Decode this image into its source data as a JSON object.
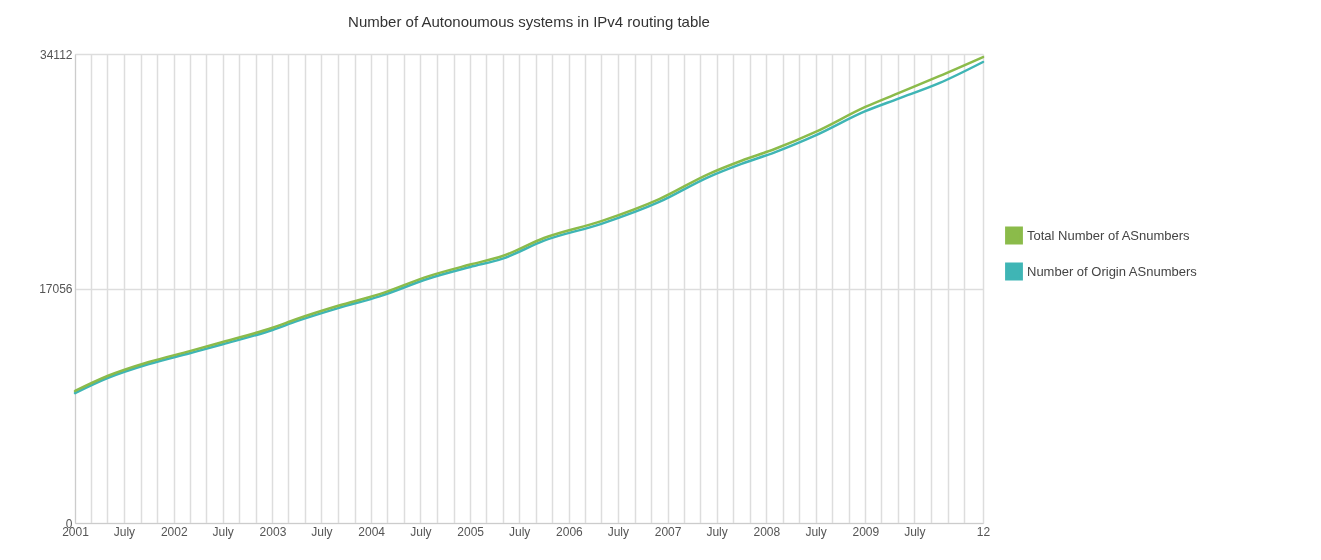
{
  "chart_data": {
    "type": "line",
    "title": "Number of Autonoumous systems in IPv4 routing table",
    "x": [
      "2001-01-01",
      "2001-05-01",
      "2001-10-01",
      "2002-03-01",
      "2002-07-01",
      "2003-01-01",
      "2003-04-01",
      "2003-09-01",
      "2004-02-01",
      "2004-08-01",
      "2005-01-01",
      "2005-05-01",
      "2005-10-01",
      "2006-05-01",
      "2006-12-01",
      "2007-06-01",
      "2007-10-01",
      "2008-02-01",
      "2008-07-01",
      "2009-01-01",
      "2009-05-01",
      "2009-10-01",
      "2010-03-12"
    ],
    "series": [
      {
        "name": "Total Number of ASnumbers",
        "color": "#8bbb4a",
        "values": [
          9600,
          10690,
          11710,
          12500,
          13160,
          14200,
          14840,
          15800,
          16650,
          17960,
          18800,
          19420,
          20730,
          21960,
          23560,
          25380,
          26350,
          27200,
          28440,
          30260,
          31250,
          32500,
          33890
        ]
      },
      {
        "name": "Number of Origin ASnumbers",
        "color": "#3fb5b5",
        "values": [
          9450,
          10540,
          11560,
          12350,
          13000,
          14040,
          14680,
          15630,
          16480,
          17780,
          18620,
          19230,
          20540,
          21760,
          23350,
          25160,
          26120,
          26960,
          28190,
          29950,
          30850,
          31990,
          33530
        ]
      }
    ],
    "xlim": [
      "2001-01-01",
      "2010-03-12"
    ],
    "xticks": [
      {
        "value": "2001-01-01",
        "label": "2001"
      },
      {
        "value": "2001-03-01",
        "label": null
      },
      {
        "value": "2001-05-01",
        "label": null
      },
      {
        "value": "2001-07-01",
        "label": "July"
      },
      {
        "value": "2001-09-01",
        "label": null
      },
      {
        "value": "2001-11-01",
        "label": null
      },
      {
        "value": "2002-01-01",
        "label": "2002"
      },
      {
        "value": "2002-03-01",
        "label": null
      },
      {
        "value": "2002-05-01",
        "label": null
      },
      {
        "value": "2002-07-01",
        "label": "July"
      },
      {
        "value": "2002-09-01",
        "label": null
      },
      {
        "value": "2002-11-01",
        "label": null
      },
      {
        "value": "2003-01-01",
        "label": "2003"
      },
      {
        "value": "2003-03-01",
        "label": null
      },
      {
        "value": "2003-05-01",
        "label": null
      },
      {
        "value": "2003-07-01",
        "label": "July"
      },
      {
        "value": "2003-09-01",
        "label": null
      },
      {
        "value": "2003-11-01",
        "label": null
      },
      {
        "value": "2004-01-01",
        "label": "2004"
      },
      {
        "value": "2004-03-01",
        "label": null
      },
      {
        "value": "2004-05-01",
        "label": null
      },
      {
        "value": "2004-07-01",
        "label": "July"
      },
      {
        "value": "2004-09-01",
        "label": null
      },
      {
        "value": "2004-11-01",
        "label": null
      },
      {
        "value": "2005-01-01",
        "label": "2005"
      },
      {
        "value": "2005-03-01",
        "label": null
      },
      {
        "value": "2005-05-01",
        "label": null
      },
      {
        "value": "2005-07-01",
        "label": "July"
      },
      {
        "value": "2005-09-01",
        "label": null
      },
      {
        "value": "2005-11-01",
        "label": null
      },
      {
        "value": "2006-01-01",
        "label": "2006"
      },
      {
        "value": "2006-03-01",
        "label": null
      },
      {
        "value": "2006-05-01",
        "label": null
      },
      {
        "value": "2006-07-01",
        "label": "July"
      },
      {
        "value": "2006-09-01",
        "label": null
      },
      {
        "value": "2006-11-01",
        "label": null
      },
      {
        "value": "2007-01-01",
        "label": "2007"
      },
      {
        "value": "2007-03-01",
        "label": null
      },
      {
        "value": "2007-05-01",
        "label": null
      },
      {
        "value": "2007-07-01",
        "label": "July"
      },
      {
        "value": "2007-09-01",
        "label": null
      },
      {
        "value": "2007-11-01",
        "label": null
      },
      {
        "value": "2008-01-01",
        "label": "2008"
      },
      {
        "value": "2008-03-01",
        "label": null
      },
      {
        "value": "2008-05-01",
        "label": null
      },
      {
        "value": "2008-07-01",
        "label": "July"
      },
      {
        "value": "2008-09-01",
        "label": null
      },
      {
        "value": "2008-11-01",
        "label": null
      },
      {
        "value": "2009-01-01",
        "label": "2009"
      },
      {
        "value": "2009-03-01",
        "label": null
      },
      {
        "value": "2009-05-01",
        "label": null
      },
      {
        "value": "2009-07-01",
        "label": "July"
      },
      {
        "value": "2009-09-01",
        "label": null
      },
      {
        "value": "2009-11-01",
        "label": null
      },
      {
        "value": "2010-01-01",
        "label": null
      },
      {
        "value": "2010-03-12",
        "label": "12"
      }
    ],
    "ylim": [
      0,
      34112
    ],
    "yticks": [
      0,
      17056,
      34112
    ],
    "grid": true,
    "legend": "right"
  }
}
